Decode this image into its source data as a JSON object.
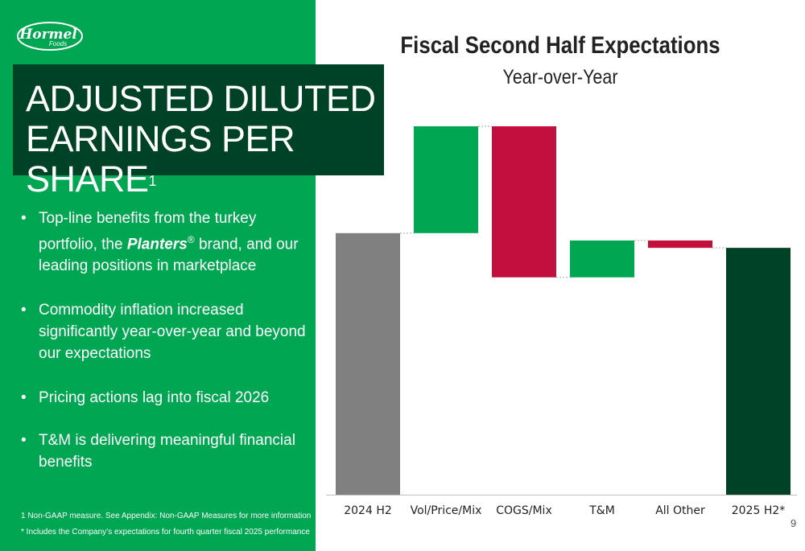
{
  "brand": {
    "logo_main": "Hormel",
    "logo_sub": "Foods"
  },
  "slide": {
    "title_line1": "ADJUSTED DILUTED",
    "title_line2": "EARNINGS PER SHARE",
    "title_superscript": "1",
    "bullets": [
      {
        "pre": "Top-line benefits from the turkey portfolio, the ",
        "em": "Planters",
        "reg": "®",
        "post": " brand, and our leading positions in marketplace"
      },
      {
        "text": "Commodity inflation increased significantly year-over-year and beyond our expectations"
      },
      {
        "text": "Pricing actions lag into fiscal 2026"
      },
      {
        "text": "T&M is delivering meaningful financial benefits"
      }
    ],
    "bullet_symbol": "•",
    "footnote1": "1 Non-GAAP measure. See Appendix: Non-GAAP Measures for more information",
    "footnote2": "* Includes the Company’s expectations for fourth quarter fiscal 2025 performance",
    "page_number": "9"
  },
  "colors": {
    "panel_green": "#00a651",
    "title_dark_green": "#004225",
    "total_gray": "#808080",
    "increase_green": "#00a651",
    "decrease_red": "#c20f3c",
    "final_dark_green": "#004225"
  },
  "chart_data": {
    "type": "bar",
    "subtype": "waterfall",
    "title": "Fiscal Second Half Expectations",
    "subtitle": "Year-over-Year",
    "categories": [
      "2024 H2",
      "Vol/Price/Mix",
      "COGS/Mix",
      "T&M",
      "All Other",
      "2025 H2*"
    ],
    "bars": [
      {
        "label": "2024 H2",
        "kind": "total",
        "start": 0,
        "end": 71
      },
      {
        "label": "Vol/Price/Mix",
        "kind": "increase",
        "start": 71,
        "end": 100
      },
      {
        "label": "COGS/Mix",
        "kind": "decrease",
        "start": 100,
        "end": 59
      },
      {
        "label": "T&M",
        "kind": "increase",
        "start": 59,
        "end": 69
      },
      {
        "label": "All Other",
        "kind": "decrease",
        "start": 69,
        "end": 67
      },
      {
        "label": "2025 H2*",
        "kind": "total",
        "start": 0,
        "end": 67
      }
    ],
    "ylim": [
      0,
      100
    ],
    "grid": false,
    "legend": "none",
    "xlabel": "",
    "ylabel": ""
  }
}
